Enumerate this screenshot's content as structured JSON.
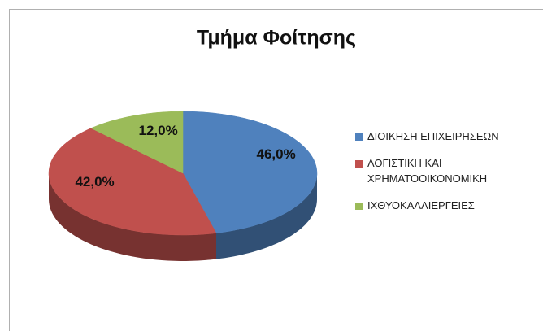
{
  "chart_data": {
    "type": "pie3d",
    "title": "Τμήμα Φοίτησης",
    "categories": [
      "ΔΙΟΙΚΗΣΗ ΕΠΙΧΕΙΡΗΣΕΩΝ",
      "ΛΟΓΙΣΤΙΚΗ ΚΑΙ ΧΡΗΜΑΤΟΟΙΚΟΝΟΜΙΚΗ",
      "ΙΧΘΥΟΚΑΛΛΙΕΡΓΕΙΕΣ"
    ],
    "series": [
      {
        "values": [
          46,
          42,
          12
        ],
        "value_labels": [
          "46,0%",
          "42,0%",
          "12,0%"
        ],
        "colors": [
          "#4f81bd",
          "#c0504d",
          "#9bbb59"
        ]
      }
    ],
    "legend": "right"
  }
}
